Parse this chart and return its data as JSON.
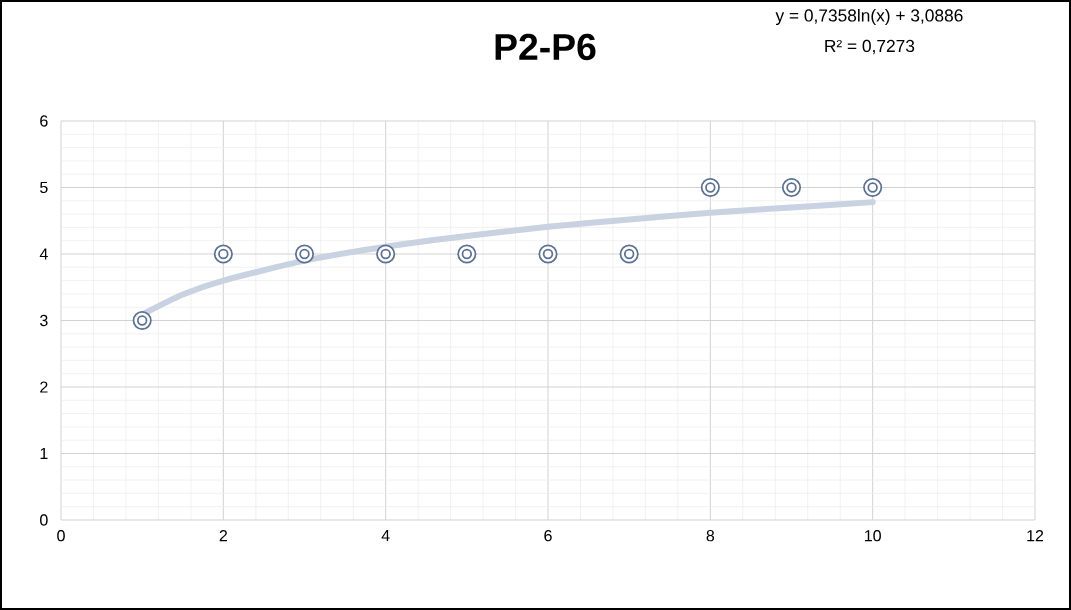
{
  "chart_data": {
    "type": "scatter",
    "title": "P2-P6",
    "annotations": [
      "y = 0,7358ln(x) + 3,0886",
      "R² = 0,7273"
    ],
    "xlim": [
      0,
      12
    ],
    "ylim": [
      0,
      6
    ],
    "xticks": [
      0,
      2,
      4,
      6,
      8,
      10,
      12
    ],
    "yticks": [
      0,
      1,
      2,
      3,
      4,
      5,
      6
    ],
    "grid": true,
    "series": [
      {
        "type": "line",
        "color": "#c8d2e1",
        "marker": "none",
        "line_style": "solid",
        "x": [
          1,
          1.5,
          2,
          3,
          4,
          5,
          6,
          7,
          8,
          9,
          10
        ],
        "values": [
          3.09,
          3.39,
          3.6,
          3.9,
          4.11,
          4.27,
          4.41,
          4.52,
          4.62,
          4.7,
          4.78
        ]
      },
      {
        "type": "scatter",
        "color": "#5b7096",
        "marker": "circle",
        "x": [
          1,
          2,
          3,
          4,
          5,
          6,
          7,
          8,
          9,
          10
        ],
        "values": [
          3,
          4,
          4,
          4,
          4,
          4,
          4,
          5,
          5,
          5
        ]
      }
    ]
  }
}
